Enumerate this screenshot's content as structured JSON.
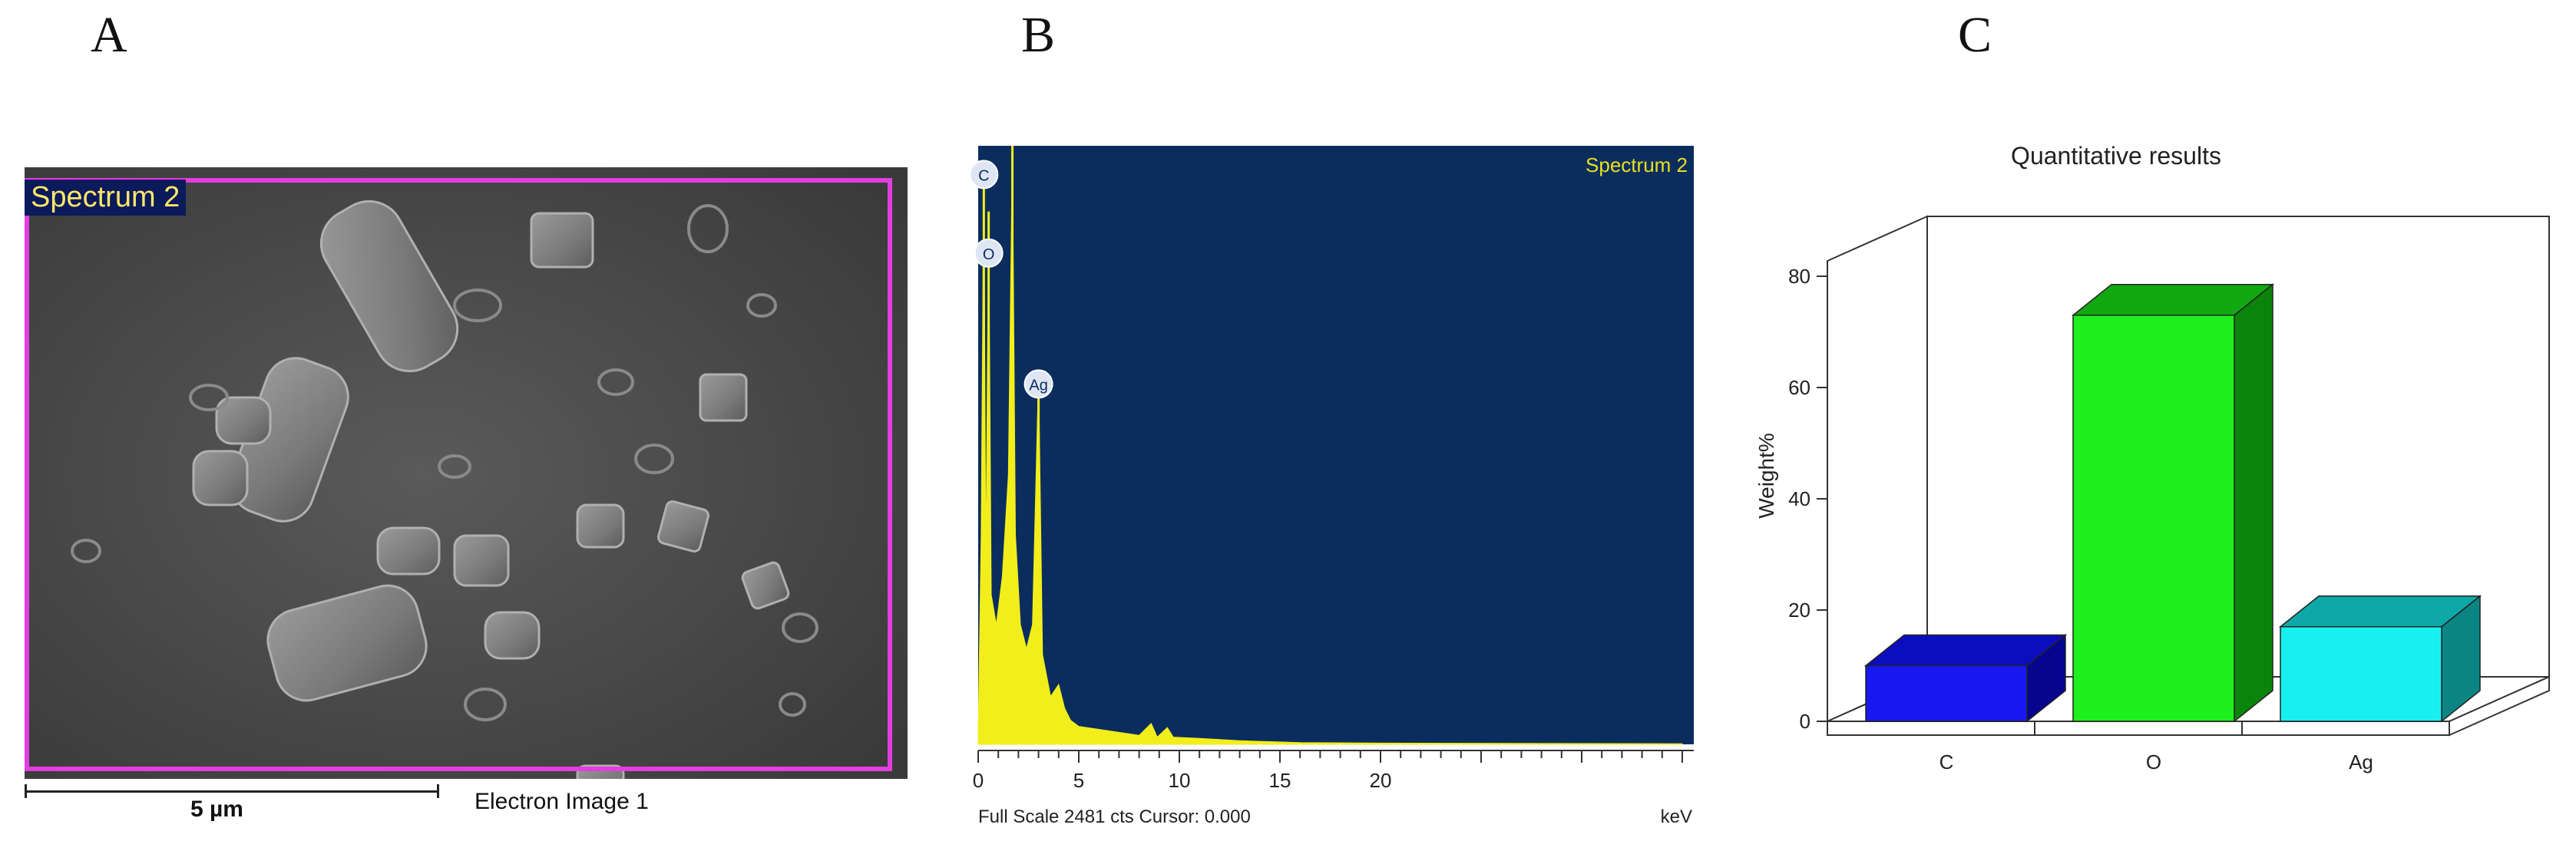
{
  "panels": {
    "a": {
      "letter": "A",
      "overlay_label": "Spectrum 2",
      "scale_label": "5 µm",
      "caption": "Electron Image 1",
      "colors": {
        "frame": "#e23ee0",
        "label_bg": "#0b1a5a",
        "label_text": "#ffe76a"
      }
    },
    "b": {
      "letter": "B",
      "spectrum_label": "Spectrum 2",
      "footer_left": "Full Scale 2481 cts Cursor: 0.000",
      "footer_right": "keV",
      "colors": {
        "background": "#0b2d5e",
        "spectrum": "#f2ee1c"
      }
    },
    "c": {
      "letter": "C"
    }
  },
  "chart_data": [
    {
      "type": "area",
      "x_ticks": [
        "0",
        "5",
        "10",
        "15",
        "20"
      ],
      "xlim": [
        0,
        35
      ],
      "peaks": [
        {
          "label": "C",
          "x": 0.28,
          "height": 0.97
        },
        {
          "label": "O",
          "x": 0.52,
          "height": 0.89
        },
        {
          "label": "",
          "x": 1.7,
          "height": 1.0
        },
        {
          "label": "Ag",
          "x": 3.0,
          "height": 0.62
        }
      ],
      "spectrum": [
        [
          0,
          0.02
        ],
        [
          0.15,
          0.35
        ],
        [
          0.28,
          0.97
        ],
        [
          0.38,
          0.3
        ],
        [
          0.52,
          0.89
        ],
        [
          0.65,
          0.25
        ],
        [
          0.9,
          0.2
        ],
        [
          1.2,
          0.28
        ],
        [
          1.5,
          0.45
        ],
        [
          1.7,
          1.0
        ],
        [
          1.85,
          0.35
        ],
        [
          2.1,
          0.2
        ],
        [
          2.4,
          0.16
        ],
        [
          2.7,
          0.2
        ],
        [
          3.0,
          0.62
        ],
        [
          3.2,
          0.15
        ],
        [
          3.6,
          0.08
        ],
        [
          4.0,
          0.1
        ],
        [
          4.3,
          0.06
        ],
        [
          4.6,
          0.04
        ],
        [
          5,
          0.03
        ],
        [
          6,
          0.025
        ],
        [
          7,
          0.02
        ],
        [
          8,
          0.015
        ],
        [
          8.6,
          0.035
        ],
        [
          8.9,
          0.012
        ],
        [
          9.4,
          0.028
        ],
        [
          9.7,
          0.012
        ],
        [
          11,
          0.01
        ],
        [
          13,
          0.006
        ],
        [
          16,
          0.003
        ],
        [
          20,
          0.002
        ],
        [
          35,
          0.001
        ]
      ]
    },
    {
      "type": "bar",
      "title": "Quantitative results",
      "ylabel": "Weight%",
      "categories": [
        "C",
        "O",
        "Ag"
      ],
      "values": [
        10,
        73,
        17
      ],
      "ylim": [
        0,
        80
      ],
      "y_ticks": [
        "0",
        "20",
        "40",
        "60",
        "80"
      ],
      "colors": [
        {
          "front": "#1818f0",
          "top": "#0d0dc0",
          "side": "#050590"
        },
        {
          "front": "#1ef01e",
          "top": "#12a812",
          "side": "#0b840b"
        },
        {
          "front": "#18f0f0",
          "top": "#0fa8a8",
          "side": "#0b8484"
        }
      ]
    }
  ]
}
